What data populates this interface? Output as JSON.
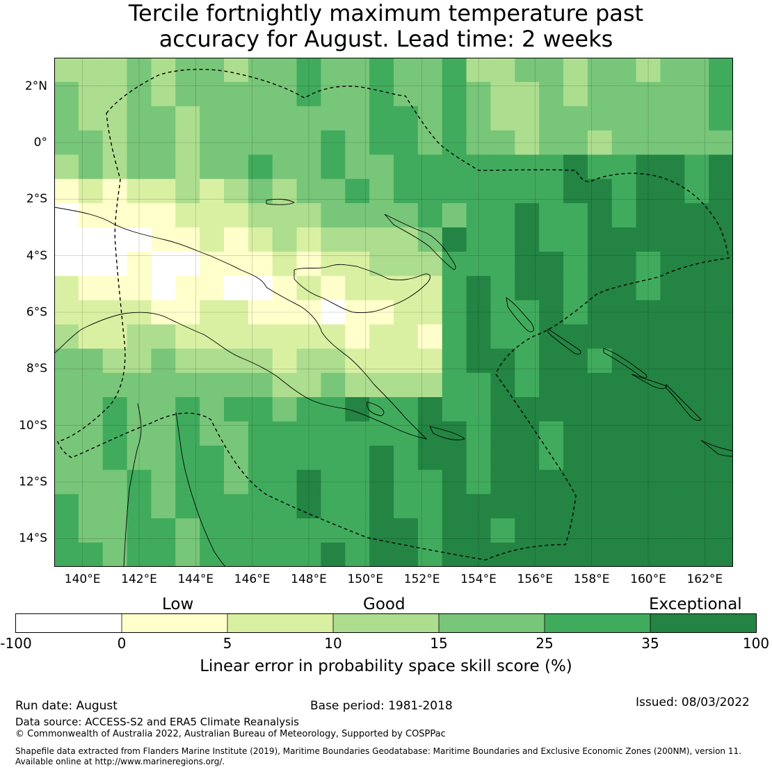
{
  "title": {
    "line1": "Tercile fortnightly maximum temperature past",
    "line2": "accuracy for August. Lead time: 2 weeks"
  },
  "map": {
    "lon_range": [
      139,
      163
    ],
    "lat_range": [
      -15,
      3
    ],
    "y_ticks": [
      {
        "label": "2°N",
        "lat": 2
      },
      {
        "label": "0°",
        "lat": 0
      },
      {
        "label": "2°S",
        "lat": -2
      },
      {
        "label": "4°S",
        "lat": -4
      },
      {
        "label": "6°S",
        "lat": -6
      },
      {
        "label": "8°S",
        "lat": -8
      },
      {
        "label": "10°S",
        "lat": -10
      },
      {
        "label": "12°S",
        "lat": -12
      },
      {
        "label": "14°S",
        "lat": -14
      }
    ],
    "x_ticks": [
      {
        "label": "140°E",
        "lon": 140
      },
      {
        "label": "142°E",
        "lon": 142
      },
      {
        "label": "144°E",
        "lon": 144
      },
      {
        "label": "146°E",
        "lon": 146
      },
      {
        "label": "148°E",
        "lon": 148
      },
      {
        "label": "150°E",
        "lon": 150
      },
      {
        "label": "152°E",
        "lon": 152
      },
      {
        "label": "154°E",
        "lon": 154
      },
      {
        "label": "156°E",
        "lon": 156
      },
      {
        "label": "158°E",
        "lon": 158
      },
      {
        "label": "160°E",
        "lon": 160
      },
      {
        "label": "162°E",
        "lon": 162
      }
    ]
  },
  "legend": {
    "categories": [
      {
        "label": "Low"
      },
      {
        "label": "Good"
      },
      {
        "label": "Exceptional"
      }
    ],
    "bins": [
      {
        "range": [
          -100,
          0
        ],
        "color": "#ffffff"
      },
      {
        "range": [
          0,
          5
        ],
        "color": "#ffffcc"
      },
      {
        "range": [
          5,
          10
        ],
        "color": "#d9f0a3"
      },
      {
        "range": [
          10,
          15
        ],
        "color": "#addd8e"
      },
      {
        "range": [
          15,
          25
        ],
        "color": "#78c679"
      },
      {
        "range": [
          25,
          35
        ],
        "color": "#41ab5d"
      },
      {
        "range": [
          35,
          100
        ],
        "color": "#238443"
      }
    ],
    "tick_labels": [
      "-100",
      "0",
      "5",
      "10",
      "15",
      "25",
      "35",
      "100"
    ],
    "title": "Linear error in probability space skill score (%)"
  },
  "footer": {
    "run_date": "Run date: August",
    "base_period": "Base period: 1981-2018",
    "issued": "Issued: 08/03/2022",
    "data_source": "Data source: ACCESS-S2 and ERA5 Climate Reanalysis",
    "copyright": "© Commonwealth of Australia 2022, Australian Bureau of Meteorology, Supported by COSPPac",
    "shapefile_line1": "Shapefile data extracted from Flanders Marine Institute (2019), Maritime Boundaries Geodatabase: Maritime Boundaries and Exclusive Economic Zones (200NM), version 11.",
    "shapefile_line2": "Available online at http://www.marineregions.org/."
  }
}
